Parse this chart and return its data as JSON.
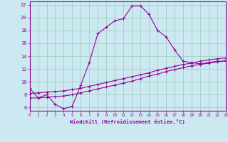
{
  "xlabel": "Windchill (Refroidissement éolien,°C)",
  "background_color": "#cce8f0",
  "grid_color": "#99ccbb",
  "line_color": "#990099",
  "spine_color": "#880088",
  "x_ticks": [
    0,
    1,
    2,
    3,
    4,
    5,
    6,
    7,
    8,
    9,
    10,
    11,
    12,
    13,
    14,
    15,
    16,
    17,
    18,
    19,
    20,
    21,
    22,
    23
  ],
  "y_ticks": [
    6,
    8,
    10,
    12,
    14,
    16,
    18,
    20,
    22
  ],
  "xlim": [
    0,
    23
  ],
  "ylim": [
    5.5,
    22.5
  ],
  "line1_x": [
    0,
    1,
    2,
    3,
    4,
    5,
    6,
    7,
    8,
    9,
    10,
    11,
    12,
    13,
    14,
    15,
    16,
    17,
    18,
    19,
    20,
    21,
    22,
    23
  ],
  "line1_y": [
    9.0,
    7.5,
    8.0,
    6.5,
    5.8,
    6.2,
    9.5,
    13.0,
    17.5,
    18.5,
    19.5,
    19.8,
    21.8,
    21.8,
    20.5,
    18.0,
    17.0,
    15.0,
    13.2,
    13.0,
    12.8,
    13.0,
    13.2,
    13.2
  ],
  "line2_x": [
    0,
    1,
    2,
    3,
    4,
    5,
    6,
    7,
    8,
    9,
    10,
    11,
    12,
    13,
    14,
    15,
    16,
    17,
    18,
    19,
    20,
    21,
    22,
    23
  ],
  "line2_y": [
    7.5,
    7.5,
    7.6,
    7.7,
    7.8,
    8.0,
    8.3,
    8.6,
    8.9,
    9.2,
    9.5,
    9.8,
    10.1,
    10.5,
    10.9,
    11.2,
    11.6,
    11.9,
    12.2,
    12.5,
    12.7,
    12.9,
    13.1,
    13.3
  ],
  "line3_x": [
    0,
    1,
    2,
    3,
    4,
    5,
    6,
    7,
    8,
    9,
    10,
    11,
    12,
    13,
    14,
    15,
    16,
    17,
    18,
    19,
    20,
    21,
    22,
    23
  ],
  "line3_y": [
    8.2,
    8.3,
    8.4,
    8.5,
    8.6,
    8.8,
    9.0,
    9.3,
    9.6,
    9.9,
    10.2,
    10.5,
    10.8,
    11.1,
    11.4,
    11.8,
    12.1,
    12.4,
    12.7,
    12.9,
    13.2,
    13.4,
    13.6,
    13.7
  ]
}
